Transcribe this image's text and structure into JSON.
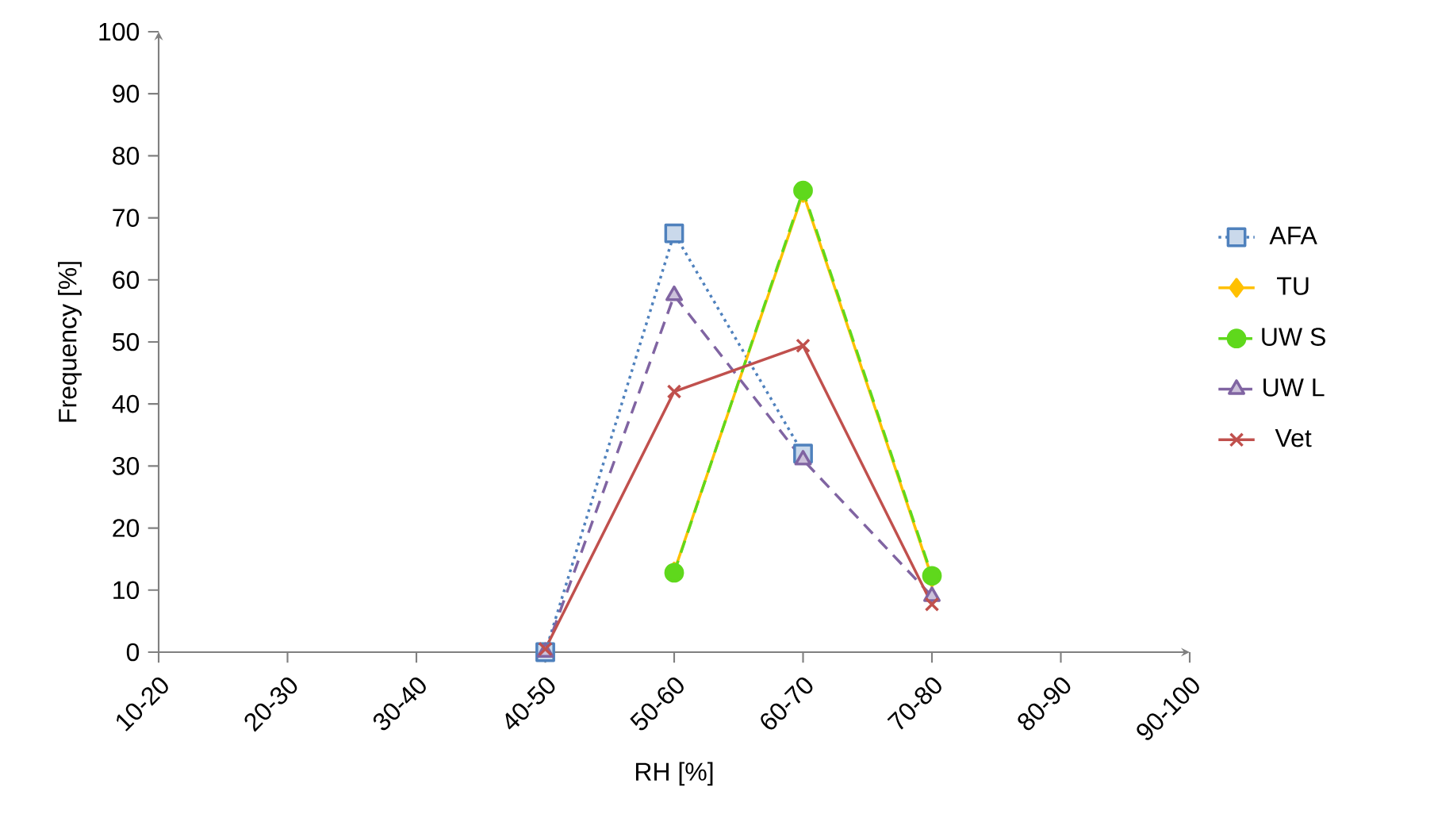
{
  "chart_data": {
    "type": "line",
    "xlabel": "RH [%]",
    "ylabel": "Frequency [%]",
    "categories": [
      "10-20",
      "20-30",
      "30-40",
      "40-50",
      "50-60",
      "60-70",
      "70-80",
      "80-90",
      "90-100"
    ],
    "series": [
      {
        "name": "AFA",
        "color": "#4f81bd",
        "marker": "square",
        "line_style": "dotted",
        "values": [
          null,
          null,
          null,
          0,
          67.5,
          32,
          null,
          null,
          null
        ]
      },
      {
        "name": "TU",
        "color": "#ffc000",
        "marker": "diamond",
        "line_style": "solid",
        "values": [
          null,
          null,
          null,
          null,
          13,
          74,
          12,
          null,
          null
        ]
      },
      {
        "name": "UW S",
        "color": "#5fd81c",
        "marker": "circle",
        "line_style": "dashed",
        "values": [
          null,
          null,
          null,
          null,
          12.8,
          74.4,
          12.3,
          null,
          null
        ]
      },
      {
        "name": "UW L",
        "color": "#8064a2",
        "marker": "triangle",
        "line_style": "dashed",
        "values": [
          null,
          null,
          null,
          0,
          57.5,
          31,
          9,
          null,
          null
        ]
      },
      {
        "name": "Vet",
        "color": "#c0504d",
        "marker": "cross",
        "line_style": "solid",
        "values": [
          null,
          null,
          null,
          0.5,
          42,
          49.4,
          7.7,
          null,
          null
        ]
      }
    ],
    "ylim": [
      0,
      100
    ],
    "yticks": [
      0,
      10,
      20,
      30,
      40,
      50,
      60,
      70,
      80,
      90,
      100
    ],
    "grid": false,
    "legend": "right"
  }
}
